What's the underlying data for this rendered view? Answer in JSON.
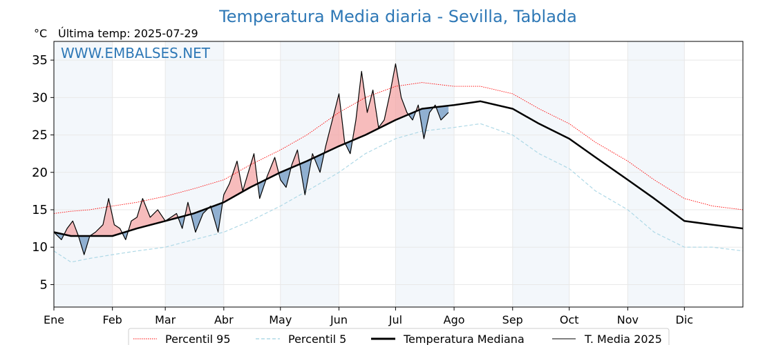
{
  "chart_data": {
    "type": "line",
    "title": "Temperatura Media diaria - Sevilla, Tablada",
    "unit_label": "°C",
    "subtitle": "Última temp: 2025-07-29",
    "watermark": "WWW.EMBALSES.NET",
    "ylim": [
      2,
      37.5
    ],
    "yticks": [
      5,
      10,
      15,
      20,
      25,
      30,
      35
    ],
    "xlim": [
      1,
      366
    ],
    "grid": true,
    "legend_position": "bottom-center",
    "months": [
      {
        "label": "Ene",
        "start_day": 1
      },
      {
        "label": "Feb",
        "start_day": 32
      },
      {
        "label": "Mar",
        "start_day": 60
      },
      {
        "label": "Abr",
        "start_day": 91
      },
      {
        "label": "May",
        "start_day": 121
      },
      {
        "label": "Jun",
        "start_day": 152
      },
      {
        "label": "Jul",
        "start_day": 182
      },
      {
        "label": "Ago",
        "start_day": 213
      },
      {
        "label": "Sep",
        "start_day": 244
      },
      {
        "label": "Oct",
        "start_day": 274
      },
      {
        "label": "Nov",
        "start_day": 305
      },
      {
        "label": "Dic",
        "start_day": 335
      }
    ],
    "shaded_month_labels": [
      "Ene",
      "Mar",
      "May",
      "Jul",
      "Sep",
      "Nov"
    ],
    "x_unit": "day_of_year",
    "series": [
      {
        "name": "Percentil 95",
        "color": "#ff0000",
        "style": "dotted",
        "x": [
          1,
          10,
          20,
          32,
          45,
          60,
          75,
          91,
          105,
          121,
          135,
          152,
          166,
          182,
          196,
          213,
          227,
          244,
          258,
          274,
          288,
          305,
          319,
          335,
          350,
          366
        ],
        "values": [
          14.5,
          14.8,
          15.0,
          15.5,
          16.0,
          16.8,
          17.8,
          19.0,
          21.0,
          23.0,
          25.0,
          28.0,
          30.0,
          31.5,
          32.0,
          31.5,
          31.5,
          30.5,
          28.5,
          26.5,
          24.0,
          21.5,
          19.0,
          16.5,
          15.5,
          15.0
        ]
      },
      {
        "name": "Percentil 5",
        "color": "#add8e6",
        "style": "dashed",
        "x": [
          1,
          10,
          20,
          32,
          45,
          60,
          75,
          91,
          105,
          121,
          135,
          152,
          166,
          182,
          196,
          213,
          227,
          244,
          258,
          274,
          288,
          305,
          319,
          335,
          350,
          366
        ],
        "values": [
          9.5,
          8.0,
          8.5,
          9.0,
          9.5,
          10.0,
          11.0,
          12.0,
          13.5,
          15.5,
          17.5,
          20.0,
          22.5,
          24.5,
          25.5,
          26.0,
          26.5,
          25.0,
          22.5,
          20.5,
          17.5,
          15.0,
          12.0,
          10.0,
          10.0,
          9.5
        ]
      },
      {
        "name": "Temperatura Mediana",
        "color": "#000000",
        "style": "solid-thick",
        "x": [
          1,
          10,
          20,
          32,
          45,
          60,
          75,
          91,
          105,
          121,
          135,
          152,
          166,
          182,
          196,
          213,
          227,
          244,
          258,
          274,
          288,
          305,
          319,
          335,
          350,
          366
        ],
        "values": [
          12.0,
          11.5,
          11.5,
          11.5,
          12.5,
          13.5,
          14.5,
          16.0,
          18.0,
          20.0,
          21.5,
          23.5,
          25.0,
          27.0,
          28.5,
          29.0,
          29.5,
          28.5,
          26.5,
          24.5,
          22.0,
          19.0,
          16.5,
          13.5,
          13.0,
          12.5
        ]
      },
      {
        "name": "T. Media 2025",
        "color": "#000000",
        "style": "solid-thin",
        "x": [
          1,
          5,
          8,
          11,
          14,
          17,
          20,
          23,
          27,
          30,
          33,
          36,
          39,
          42,
          45,
          48,
          52,
          56,
          60,
          63,
          66,
          69,
          72,
          76,
          80,
          84,
          88,
          91,
          94,
          98,
          101,
          104,
          107,
          110,
          114,
          118,
          121,
          124,
          127,
          130,
          134,
          138,
          142,
          145,
          149,
          152,
          155,
          158,
          161,
          164,
          167,
          170,
          173,
          176,
          179,
          182,
          185,
          188,
          191,
          194,
          197,
          200,
          203,
          206,
          210
        ],
        "values": [
          12.0,
          11.0,
          12.5,
          13.5,
          11.5,
          9.0,
          11.5,
          12.0,
          13.0,
          16.5,
          13.0,
          12.5,
          11.0,
          13.5,
          14.0,
          16.5,
          14.0,
          15.0,
          13.5,
          14.0,
          14.5,
          12.5,
          16.0,
          12.0,
          14.5,
          15.5,
          12.0,
          17.0,
          18.5,
          21.5,
          17.5,
          20.0,
          22.5,
          16.5,
          19.5,
          22.0,
          19.0,
          18.0,
          21.0,
          23.0,
          17.0,
          22.5,
          20.0,
          23.5,
          27.5,
          30.5,
          24.0,
          22.5,
          27.0,
          33.5,
          28.0,
          31.0,
          26.0,
          27.0,
          30.5,
          34.5,
          30.0,
          28.0,
          27.0,
          29.0,
          24.5,
          28.0,
          29.0,
          27.0,
          28.0
        ]
      }
    ]
  },
  "legend": [
    {
      "label": "Percentil 95"
    },
    {
      "label": "Percentil 5"
    },
    {
      "label": "Temperatura Mediana"
    },
    {
      "label": "T. Media 2025"
    }
  ]
}
